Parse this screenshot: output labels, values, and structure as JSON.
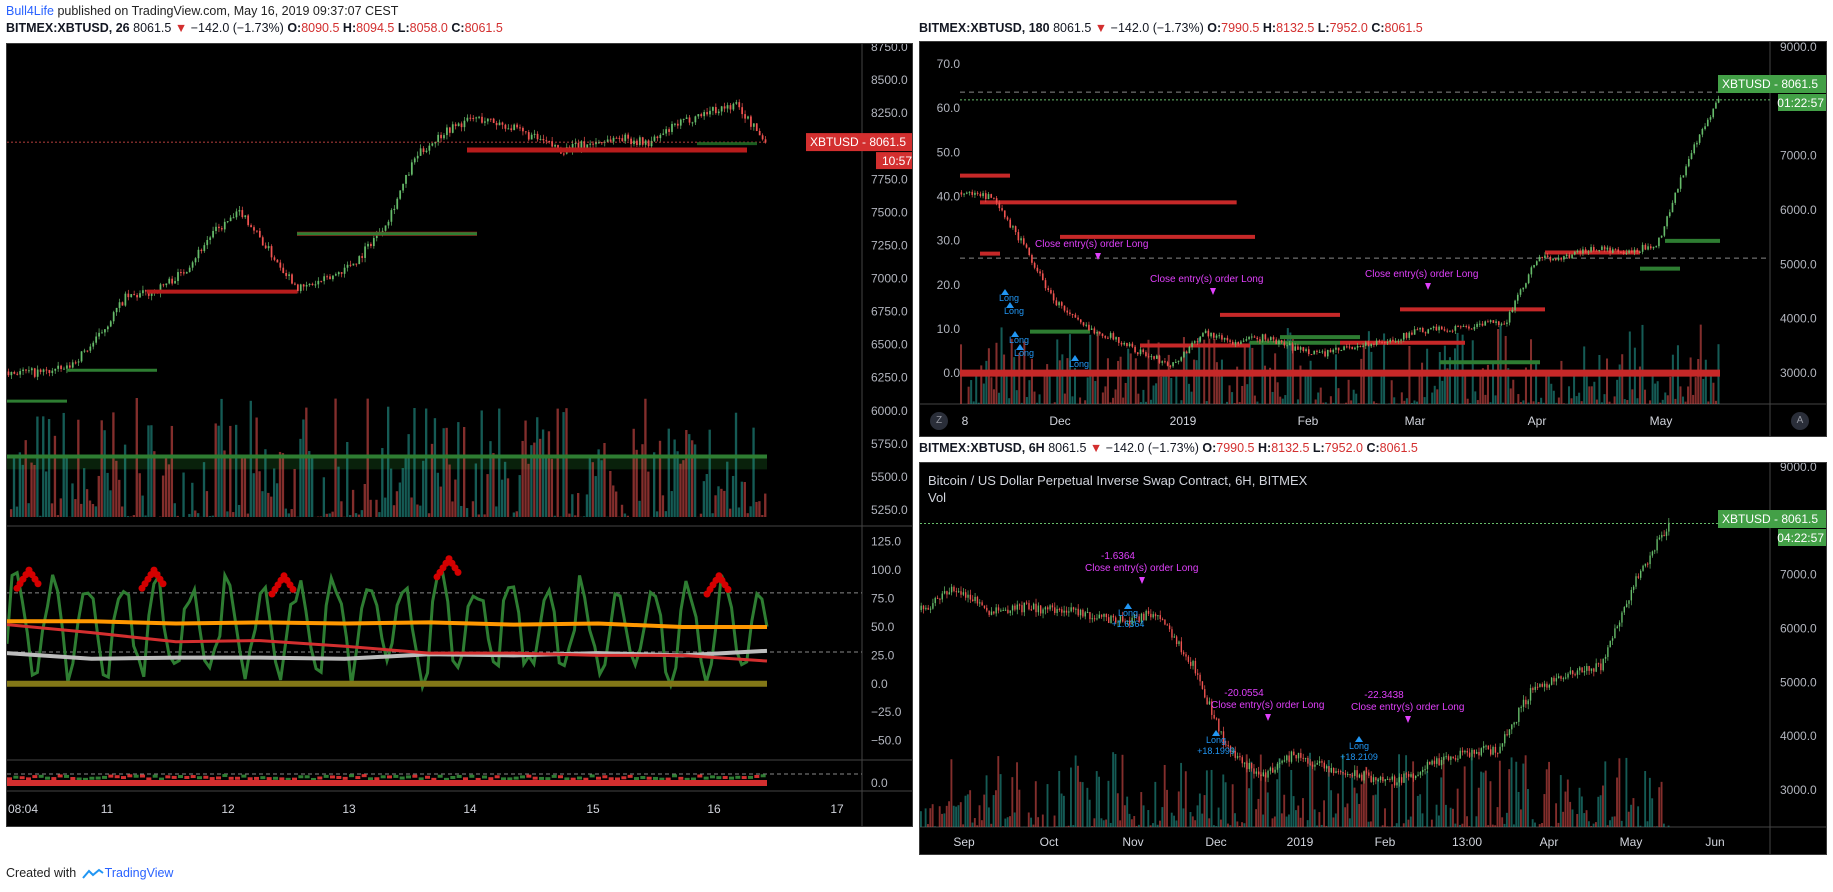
{
  "header": {
    "author": "Bull4Life",
    "published_text": "published on TradingView.com, May 16, 2019 09:37:07 CEST"
  },
  "footer": {
    "created_with": "Created with",
    "brand": "TradingView"
  },
  "colors": {
    "bg": "#000000",
    "up": "#66bb6a",
    "down": "#ef5350",
    "red_label": "#d32f2f",
    "green_label": "#43a047",
    "purple": "#e040fb",
    "blue": "#2196f3",
    "orange": "#ff9800",
    "grey_line": "#bdbdbd",
    "dark_green": "#1b5e20"
  },
  "panels": {
    "left": {
      "title": {
        "symbol": "BITMEX:XBTUSD, 26",
        "price": "8061.5",
        "arrow": "▼",
        "change": "−142.0 (−1.73%)",
        "o_label": "O:",
        "o": "8090.5",
        "h_label": "H:",
        "h": "8094.5",
        "l_label": "L:",
        "l": "8058.0",
        "c_label": "C:",
        "c": "8061.5"
      },
      "price_badge": {
        "label": "XBTUSD",
        "price": "8061.5",
        "countdown": "10:57"
      },
      "price_axis": [
        "8750.0",
        "8500.0",
        "8250.0",
        "8000.0",
        "7750.0",
        "7500.0",
        "7250.0",
        "7000.0",
        "6750.0",
        "6500.0",
        "6250.0",
        "6000.0",
        "5750.0",
        "5500.0",
        "5250.0"
      ],
      "osc_axis": [
        "125.0",
        "100.0",
        "75.0",
        "50.0",
        "25.0",
        "0.0",
        "−25.0",
        "−50.0"
      ],
      "mini_axis": [
        "0.0"
      ],
      "time_axis": [
        "08:04",
        "11",
        "12",
        "13",
        "14",
        "15",
        "16",
        "17"
      ]
    },
    "top_right": {
      "title": {
        "symbol": "BITMEX:XBTUSD, 180",
        "price": "8061.5",
        "arrow": "▼",
        "change": "−142.0 (−1.73%)",
        "o_label": "O:",
        "o": "7990.5",
        "h_label": "H:",
        "h": "8132.5",
        "l_label": "L:",
        "l": "7952.0",
        "c_label": "C:",
        "c": "8061.5"
      },
      "price_badge": {
        "label": "XBTUSD",
        "price": "8061.5",
        "countdown": "01:22:57"
      },
      "right_axis": [
        "9000.0",
        "8000.0",
        "7000.0",
        "6000.0",
        "5000.0",
        "4000.0",
        "3000.0"
      ],
      "left_axis": [
        "70.0",
        "60.0",
        "50.0",
        "40.0",
        "30.0",
        "20.0",
        "10.0",
        "0.0"
      ],
      "time_axis": [
        "8",
        "Dec",
        "2019",
        "Feb",
        "Mar",
        "Apr",
        "May"
      ],
      "zoom_button": "Z",
      "auto_button": "A",
      "annotations": [
        {
          "text": "Close entry(s) order Long"
        },
        {
          "text": "Close entry(s) order Long"
        },
        {
          "text": "Close entry(s) order Long"
        },
        {
          "text": "Long"
        },
        {
          "text": "Long"
        },
        {
          "text": "Long"
        },
        {
          "text": "Long"
        },
        {
          "text": "Long"
        }
      ]
    },
    "bottom_right": {
      "title": {
        "symbol": "BITMEX:XBTUSD, 6H",
        "price": "8061.5",
        "arrow": "▼",
        "change": "−142.0 (−1.73%)",
        "o_label": "O:",
        "o": "7990.5",
        "h_label": "H:",
        "h": "8132.5",
        "l_label": "L:",
        "l": "7952.0",
        "c_label": "C:",
        "c": "8061.5"
      },
      "legend": {
        "name": "Bitcoin / US Dollar Perpetual Inverse Swap Contract, 6H, BITMEX",
        "vol": "Vol"
      },
      "price_badge": {
        "label": "XBTUSD",
        "price": "8061.5",
        "countdown": "04:22:57"
      },
      "right_axis": [
        "9000.0",
        "8000.0",
        "7000.0",
        "6000.0",
        "5000.0",
        "4000.0",
        "3000.0"
      ],
      "time_axis": [
        "Sep",
        "Oct",
        "Nov",
        "Dec",
        "2019",
        "Feb",
        "13:00",
        "Apr",
        "May",
        "Jun"
      ],
      "annotations": [
        {
          "value": "-1.6364",
          "text": "Close entry(s) order Long"
        },
        {
          "value": "-20.0554",
          "text": "Close entry(s) order Long"
        },
        {
          "value": "-22.3438",
          "text": "Close entry(s) order Long"
        },
        {
          "text": "Long",
          "value": "+1.6364"
        },
        {
          "text": "Long",
          "value": "+18.1999"
        },
        {
          "text": "Long",
          "value": "+18.2109"
        }
      ]
    }
  },
  "chart_data": [
    {
      "type": "candlestick",
      "panel": "left",
      "interval": "26 minutes",
      "x_labels": [
        "08:04",
        "11",
        "12",
        "13",
        "14",
        "15",
        "16",
        "17"
      ],
      "price_range": [
        5150,
        8800
      ],
      "last_price": 8061.5,
      "approx_closes": [
        6280,
        6270,
        6300,
        6520,
        6850,
        6900,
        7050,
        7350,
        7520,
        7200,
        6920,
        7000,
        7150,
        7450,
        7950,
        8150,
        8250,
        8200,
        8100,
        8000,
        8050,
        8100,
        8050,
        8200,
        8300,
        8350,
        8061.5
      ],
      "horizontal_levels": [
        {
          "price": 8061.5,
          "style": "red dotted",
          "role": "last price"
        },
        {
          "price": 8000,
          "color": "red"
        },
        {
          "price": 7350,
          "color": "red"
        },
        {
          "price": 6900,
          "color": "red"
        },
        {
          "price": 8050,
          "color": "green"
        },
        {
          "price": 7350,
          "color": "green"
        },
        {
          "price": 6290,
          "color": "green"
        },
        {
          "price": 6050,
          "color": "green"
        }
      ],
      "oscillator": {
        "range": [
          -60,
          130
        ],
        "dashed_levels": [
          80,
          28
        ],
        "series": [
          {
            "color": "orange",
            "approx": [
              55,
              55,
              53,
              54,
              53,
              54,
              52,
              53,
              50,
              50
            ]
          },
          {
            "color": "grey",
            "approx": [
              27,
              22,
              23,
              23,
              22,
              26,
              25,
              27,
              25,
              29
            ]
          },
          {
            "color": "red",
            "approx": [
              52,
              45,
              37,
              38,
              33,
              27,
              27,
              25,
              25,
              20
            ]
          }
        ]
      }
    },
    {
      "type": "candlestick",
      "panel": "top_right",
      "interval": "180 minutes",
      "x_labels": [
        "8",
        "Dec",
        "2019",
        "Feb",
        "Mar",
        "Apr",
        "May"
      ],
      "price_range": [
        2600,
        9100
      ],
      "oscillator_range": [
        -7,
        75
      ],
      "last_price": 8061.5,
      "approx_closes": [
        6400,
        6300,
        5500,
        4500,
        4000,
        3800,
        3500,
        3300,
        3900,
        3700,
        3800,
        3600,
        3500,
        3650,
        3700,
        3900,
        3950,
        4000,
        4100,
        5200,
        5250,
        5400,
        5300,
        5500,
        7000,
        8061.5
      ],
      "dashed_levels": [
        8200,
        5220
      ]
    },
    {
      "type": "candlestick",
      "panel": "bottom_right",
      "interval": "6H",
      "x_labels": [
        "Sep",
        "Oct",
        "Nov",
        "Dec",
        "2019",
        "Feb",
        "13:00",
        "Apr",
        "May",
        "Jun"
      ],
      "price_range": [
        2600,
        9100
      ],
      "last_price": 8061.5,
      "approx_closes": [
        6500,
        6900,
        6500,
        6550,
        6500,
        6400,
        6300,
        6450,
        5500,
        4000,
        3500,
        3900,
        3600,
        3500,
        3400,
        3700,
        3900,
        4000,
        5100,
        5300,
        5500,
        7000,
        8061.5
      ]
    }
  ]
}
